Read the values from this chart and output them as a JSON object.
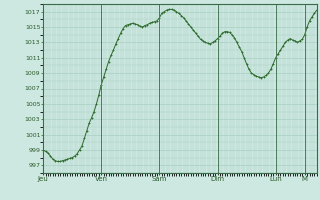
{
  "background_color": "#cce8e0",
  "plot_bg_color": "#cce8e0",
  "line_color": "#2d6a2d",
  "marker_color": "#2d6a2d",
  "grid_color": "#a8cfc0",
  "tick_label_color": "#2d5a2d",
  "ylim": [
    996,
    1018
  ],
  "yticks": [
    997,
    999,
    1001,
    1003,
    1005,
    1007,
    1009,
    1011,
    1013,
    1015,
    1017
  ],
  "xtick_labels": [
    "Jeu",
    "Ven",
    "Sam",
    "Dim",
    "Lun",
    "M"
  ],
  "xtick_positions": [
    0,
    24,
    48,
    72,
    96,
    108
  ],
  "pressure_values": [
    999.0,
    998.8,
    998.6,
    998.2,
    997.8,
    997.6,
    997.5,
    997.5,
    997.6,
    997.7,
    997.8,
    997.9,
    998.0,
    998.2,
    998.5,
    999.0,
    999.5,
    1000.5,
    1001.5,
    1002.5,
    1003.2,
    1004.0,
    1005.0,
    1006.2,
    1007.5,
    1008.5,
    1009.5,
    1010.5,
    1011.3,
    1012.0,
    1012.8,
    1013.5,
    1014.2,
    1014.8,
    1015.2,
    1015.3,
    1015.4,
    1015.5,
    1015.4,
    1015.3,
    1015.1,
    1015.0,
    1015.2,
    1015.3,
    1015.5,
    1015.6,
    1015.7,
    1015.8,
    1016.2,
    1016.8,
    1017.0,
    1017.2,
    1017.3,
    1017.3,
    1017.2,
    1017.0,
    1016.8,
    1016.5,
    1016.2,
    1015.8,
    1015.4,
    1015.0,
    1014.6,
    1014.2,
    1013.8,
    1013.4,
    1013.2,
    1013.0,
    1012.9,
    1012.8,
    1013.0,
    1013.2,
    1013.5,
    1013.8,
    1014.2,
    1014.4,
    1014.4,
    1014.3,
    1014.0,
    1013.6,
    1013.0,
    1012.4,
    1011.8,
    1011.0,
    1010.2,
    1009.5,
    1009.0,
    1008.8,
    1008.6,
    1008.5,
    1008.4,
    1008.5,
    1008.7,
    1009.0,
    1009.5,
    1010.2,
    1011.0,
    1011.5,
    1012.0,
    1012.5,
    1013.0,
    1013.3,
    1013.5,
    1013.3,
    1013.2,
    1013.0,
    1013.2,
    1013.4,
    1014.0,
    1015.0,
    1015.8,
    1016.3,
    1016.8,
    1017.2
  ]
}
